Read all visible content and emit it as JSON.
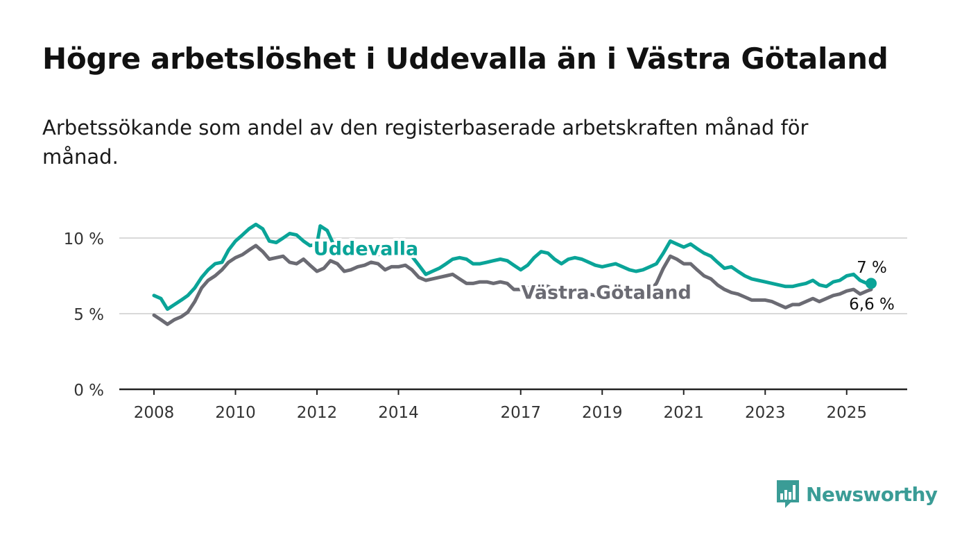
{
  "title": "Högre arbetslöshet i Uddevalla än i Västra Götaland",
  "subtitle": "Arbetssökande som andel av den registerbaserade arbetskraften månad för månad.",
  "logo": {
    "text": "Newsworthy",
    "icon": "newsworthy-bar-chart-logo"
  },
  "colors": {
    "uddevalla": "#0aa498",
    "vastra_gotaland": "#6b6b73",
    "grid": "#d9d9d9",
    "axis": "#222222",
    "brand": "#3a9c96"
  },
  "chart_data": {
    "type": "line",
    "title": "Högre arbetslöshet i Uddevalla än i Västra Götaland",
    "subtitle": "Arbetssökande som andel av den registerbaserade arbetskraften månad för månad.",
    "xlabel": "",
    "ylabel": "",
    "x_ticks": [
      "2008",
      "2010",
      "2012",
      "2014",
      "2017",
      "2019",
      "2021",
      "2023",
      "2025"
    ],
    "y_ticks": [
      "0 %",
      "5 %",
      "10 %"
    ],
    "ylim": [
      0,
      10
    ],
    "xlim": [
      2007.2,
      2026.5
    ],
    "grid": "horizontal",
    "series": [
      {
        "name": "Uddevalla",
        "color": "#0aa498",
        "end_label": "7 %",
        "points": [
          [
            2008.0,
            6.2
          ],
          [
            2008.17,
            6.0
          ],
          [
            2008.33,
            5.3
          ],
          [
            2008.5,
            5.6
          ],
          [
            2008.67,
            5.9
          ],
          [
            2008.83,
            6.2
          ],
          [
            2009.0,
            6.7
          ],
          [
            2009.17,
            7.4
          ],
          [
            2009.33,
            7.9
          ],
          [
            2009.5,
            8.3
          ],
          [
            2009.67,
            8.4
          ],
          [
            2009.83,
            9.2
          ],
          [
            2010.0,
            9.8
          ],
          [
            2010.17,
            10.2
          ],
          [
            2010.33,
            10.6
          ],
          [
            2010.5,
            10.9
          ],
          [
            2010.67,
            10.6
          ],
          [
            2010.83,
            9.8
          ],
          [
            2011.0,
            9.7
          ],
          [
            2011.17,
            10.0
          ],
          [
            2011.33,
            10.3
          ],
          [
            2011.5,
            10.2
          ],
          [
            2011.67,
            9.8
          ],
          [
            2011.83,
            9.5
          ],
          [
            2012.0,
            9.6
          ],
          [
            2012.08,
            10.8
          ],
          [
            2012.25,
            10.5
          ],
          [
            2012.42,
            9.5
          ],
          [
            2012.58,
            9.1
          ],
          [
            2012.75,
            9.2
          ],
          [
            2013.0,
            9.3
          ],
          [
            2013.25,
            9.5
          ],
          [
            2013.5,
            8.9
          ],
          [
            2013.75,
            9.2
          ],
          [
            2014.0,
            9.0
          ],
          [
            2014.17,
            9.2
          ],
          [
            2014.33,
            8.8
          ],
          [
            2014.5,
            8.2
          ],
          [
            2014.67,
            7.6
          ],
          [
            2014.83,
            7.8
          ],
          [
            2015.0,
            8.0
          ],
          [
            2015.17,
            8.3
          ],
          [
            2015.33,
            8.6
          ],
          [
            2015.5,
            8.7
          ],
          [
            2015.67,
            8.6
          ],
          [
            2015.83,
            8.3
          ],
          [
            2016.0,
            8.3
          ],
          [
            2016.17,
            8.4
          ],
          [
            2016.33,
            8.5
          ],
          [
            2016.5,
            8.6
          ],
          [
            2016.67,
            8.5
          ],
          [
            2016.83,
            8.2
          ],
          [
            2017.0,
            7.9
          ],
          [
            2017.17,
            8.2
          ],
          [
            2017.33,
            8.7
          ],
          [
            2017.5,
            9.1
          ],
          [
            2017.67,
            9.0
          ],
          [
            2017.83,
            8.6
          ],
          [
            2018.0,
            8.3
          ],
          [
            2018.17,
            8.6
          ],
          [
            2018.33,
            8.7
          ],
          [
            2018.5,
            8.6
          ],
          [
            2018.67,
            8.4
          ],
          [
            2018.83,
            8.2
          ],
          [
            2019.0,
            8.1
          ],
          [
            2019.17,
            8.2
          ],
          [
            2019.33,
            8.3
          ],
          [
            2019.5,
            8.1
          ],
          [
            2019.67,
            7.9
          ],
          [
            2019.83,
            7.8
          ],
          [
            2020.0,
            7.9
          ],
          [
            2020.17,
            8.1
          ],
          [
            2020.33,
            8.3
          ],
          [
            2020.5,
            9.0
          ],
          [
            2020.67,
            9.8
          ],
          [
            2020.83,
            9.6
          ],
          [
            2021.0,
            9.4
          ],
          [
            2021.17,
            9.6
          ],
          [
            2021.33,
            9.3
          ],
          [
            2021.5,
            9.0
          ],
          [
            2021.67,
            8.8
          ],
          [
            2021.83,
            8.4
          ],
          [
            2022.0,
            8.0
          ],
          [
            2022.17,
            8.1
          ],
          [
            2022.33,
            7.8
          ],
          [
            2022.5,
            7.5
          ],
          [
            2022.67,
            7.3
          ],
          [
            2022.83,
            7.2
          ],
          [
            2023.0,
            7.1
          ],
          [
            2023.17,
            7.0
          ],
          [
            2023.33,
            6.9
          ],
          [
            2023.5,
            6.8
          ],
          [
            2023.67,
            6.8
          ],
          [
            2023.83,
            6.9
          ],
          [
            2024.0,
            7.0
          ],
          [
            2024.17,
            7.2
          ],
          [
            2024.33,
            6.9
          ],
          [
            2024.5,
            6.8
          ],
          [
            2024.67,
            7.1
          ],
          [
            2024.83,
            7.2
          ],
          [
            2025.0,
            7.5
          ],
          [
            2025.17,
            7.6
          ],
          [
            2025.33,
            7.2
          ],
          [
            2025.5,
            7.0
          ],
          [
            2025.6,
            7.0
          ]
        ]
      },
      {
        "name": "Västra Götaland",
        "color": "#6b6b73",
        "end_label": "6,6 %",
        "points": [
          [
            2008.0,
            4.9
          ],
          [
            2008.17,
            4.6
          ],
          [
            2008.33,
            4.3
          ],
          [
            2008.5,
            4.6
          ],
          [
            2008.67,
            4.8
          ],
          [
            2008.83,
            5.1
          ],
          [
            2009.0,
            5.8
          ],
          [
            2009.17,
            6.7
          ],
          [
            2009.33,
            7.2
          ],
          [
            2009.5,
            7.5
          ],
          [
            2009.67,
            7.9
          ],
          [
            2009.83,
            8.4
          ],
          [
            2010.0,
            8.7
          ],
          [
            2010.17,
            8.9
          ],
          [
            2010.33,
            9.2
          ],
          [
            2010.5,
            9.5
          ],
          [
            2010.67,
            9.1
          ],
          [
            2010.83,
            8.6
          ],
          [
            2011.0,
            8.7
          ],
          [
            2011.17,
            8.8
          ],
          [
            2011.33,
            8.4
          ],
          [
            2011.5,
            8.3
          ],
          [
            2011.67,
            8.6
          ],
          [
            2011.83,
            8.2
          ],
          [
            2012.0,
            7.8
          ],
          [
            2012.17,
            8.0
          ],
          [
            2012.33,
            8.5
          ],
          [
            2012.5,
            8.3
          ],
          [
            2012.67,
            7.8
          ],
          [
            2012.83,
            7.9
          ],
          [
            2013.0,
            8.1
          ],
          [
            2013.17,
            8.2
          ],
          [
            2013.33,
            8.4
          ],
          [
            2013.5,
            8.3
          ],
          [
            2013.67,
            7.9
          ],
          [
            2013.83,
            8.1
          ],
          [
            2014.0,
            8.1
          ],
          [
            2014.17,
            8.2
          ],
          [
            2014.33,
            7.9
          ],
          [
            2014.5,
            7.4
          ],
          [
            2014.67,
            7.2
          ],
          [
            2014.83,
            7.3
          ],
          [
            2015.0,
            7.4
          ],
          [
            2015.17,
            7.5
          ],
          [
            2015.33,
            7.6
          ],
          [
            2015.5,
            7.3
          ],
          [
            2015.67,
            7.0
          ],
          [
            2015.83,
            7.0
          ],
          [
            2016.0,
            7.1
          ],
          [
            2016.17,
            7.1
          ],
          [
            2016.33,
            7.0
          ],
          [
            2016.5,
            7.1
          ],
          [
            2016.67,
            7.0
          ],
          [
            2016.83,
            6.6
          ],
          [
            2017.0,
            6.6
          ],
          [
            2017.17,
            6.7
          ],
          [
            2017.33,
            6.8
          ],
          [
            2017.5,
            6.9
          ],
          [
            2017.67,
            6.8
          ],
          [
            2017.83,
            6.6
          ],
          [
            2018.0,
            6.4
          ],
          [
            2018.17,
            6.5
          ],
          [
            2018.33,
            6.5
          ],
          [
            2018.5,
            6.4
          ],
          [
            2018.67,
            6.3
          ],
          [
            2018.83,
            6.2
          ],
          [
            2019.0,
            6.1
          ],
          [
            2019.17,
            6.1
          ],
          [
            2019.33,
            6.2
          ],
          [
            2019.5,
            6.3
          ],
          [
            2019.67,
            6.2
          ],
          [
            2019.83,
            6.1
          ],
          [
            2020.0,
            6.2
          ],
          [
            2020.17,
            6.5
          ],
          [
            2020.33,
            7.0
          ],
          [
            2020.5,
            8.0
          ],
          [
            2020.67,
            8.8
          ],
          [
            2020.83,
            8.6
          ],
          [
            2021.0,
            8.3
          ],
          [
            2021.17,
            8.3
          ],
          [
            2021.33,
            7.9
          ],
          [
            2021.5,
            7.5
          ],
          [
            2021.67,
            7.3
          ],
          [
            2021.83,
            6.9
          ],
          [
            2022.0,
            6.6
          ],
          [
            2022.17,
            6.4
          ],
          [
            2022.33,
            6.3
          ],
          [
            2022.5,
            6.1
          ],
          [
            2022.67,
            5.9
          ],
          [
            2022.83,
            5.9
          ],
          [
            2023.0,
            5.9
          ],
          [
            2023.17,
            5.8
          ],
          [
            2023.33,
            5.6
          ],
          [
            2023.5,
            5.4
          ],
          [
            2023.67,
            5.6
          ],
          [
            2023.83,
            5.6
          ],
          [
            2024.0,
            5.8
          ],
          [
            2024.17,
            6.0
          ],
          [
            2024.33,
            5.8
          ],
          [
            2024.5,
            6.0
          ],
          [
            2024.67,
            6.2
          ],
          [
            2024.83,
            6.3
          ],
          [
            2025.0,
            6.5
          ],
          [
            2025.17,
            6.6
          ],
          [
            2025.33,
            6.3
          ],
          [
            2025.5,
            6.5
          ],
          [
            2025.6,
            6.6
          ]
        ]
      }
    ],
    "annotations": [
      {
        "text": "Uddevalla",
        "series": "Uddevalla",
        "anchor": [
          2013.2,
          9.3
        ]
      },
      {
        "text": "Västra Götaland",
        "series": "Västra Götaland",
        "anchor": [
          2019.1,
          6.4
        ]
      }
    ]
  }
}
